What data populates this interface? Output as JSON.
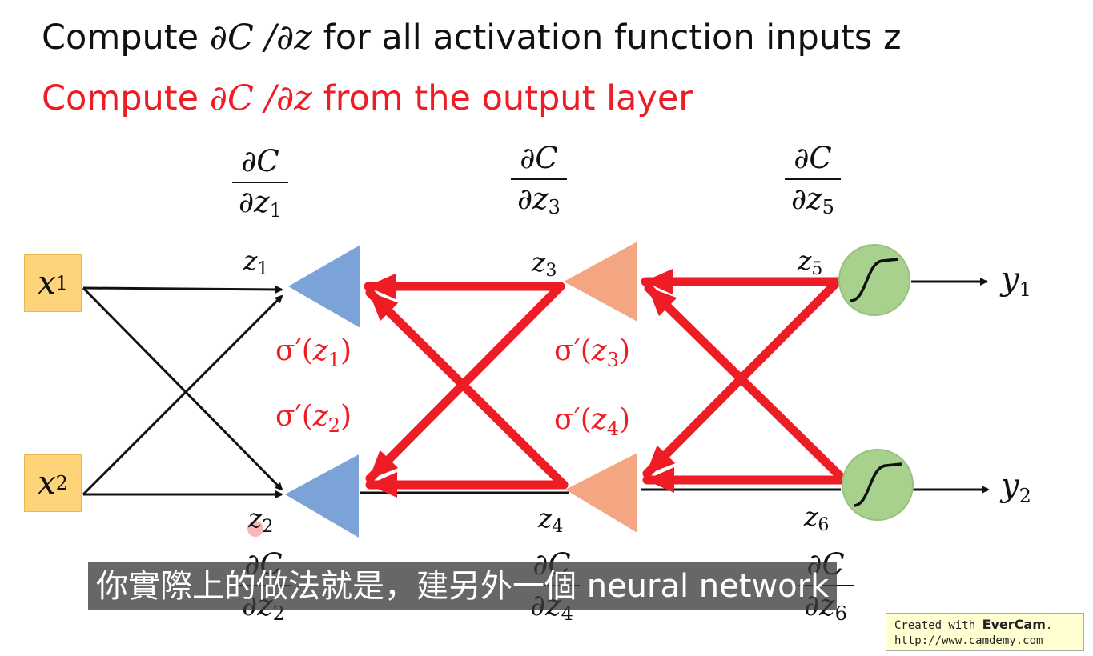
{
  "title": {
    "before": "Compute ",
    "math": "∂C /∂z",
    "after": " for all activation function inputs z"
  },
  "subtitle": {
    "before": "Compute ",
    "math": "∂C /∂z",
    "after": " from the output layer"
  },
  "inputs": [
    {
      "name": "x",
      "sub": "1"
    },
    {
      "name": "x",
      "sub": "2"
    }
  ],
  "outputs": [
    {
      "name": "y",
      "sub": "1"
    },
    {
      "name": "y",
      "sub": "2"
    }
  ],
  "z_labels": [
    {
      "name": "z",
      "sub": "1"
    },
    {
      "name": "z",
      "sub": "2"
    },
    {
      "name": "z",
      "sub": "3"
    },
    {
      "name": "z",
      "sub": "4"
    },
    {
      "name": "z",
      "sub": "5"
    },
    {
      "name": "z",
      "sub": "6"
    }
  ],
  "fractions": [
    {
      "num": "∂C",
      "den": "∂z",
      "sub": "1"
    },
    {
      "num": "∂C",
      "den": "∂z",
      "sub": "2"
    },
    {
      "num": "∂C",
      "den": "∂z",
      "sub": "3"
    },
    {
      "num": "∂C",
      "den": "∂z",
      "sub": "4"
    },
    {
      "num": "∂C",
      "den": "∂z",
      "sub": "5"
    },
    {
      "num": "∂C",
      "den": "∂z",
      "sub": "6"
    }
  ],
  "sigma_labels": [
    {
      "prefix": "σ′(",
      "var": "z",
      "sub": "1",
      "suffix": ")"
    },
    {
      "prefix": "σ′(",
      "var": "z",
      "sub": "2",
      "suffix": ")"
    },
    {
      "prefix": "σ′(",
      "var": "z",
      "sub": "3",
      "suffix": ")"
    },
    {
      "prefix": "σ′(",
      "var": "z",
      "sub": "4",
      "suffix": ")"
    }
  ],
  "caption": "你實際上的做法就是，建另外一個 neural network",
  "watermark": {
    "line1_prefix": "Created with ",
    "brand": "EverCam",
    "line1_suffix": ".",
    "line2": "http://www.camdemy.com"
  },
  "colors": {
    "accent_red": "#ee1c24",
    "layer1_blue": "#7ba3d8",
    "layer2_orange": "#f4a582",
    "output_green": "#a9d18e",
    "input_box": "#fdd47a"
  }
}
